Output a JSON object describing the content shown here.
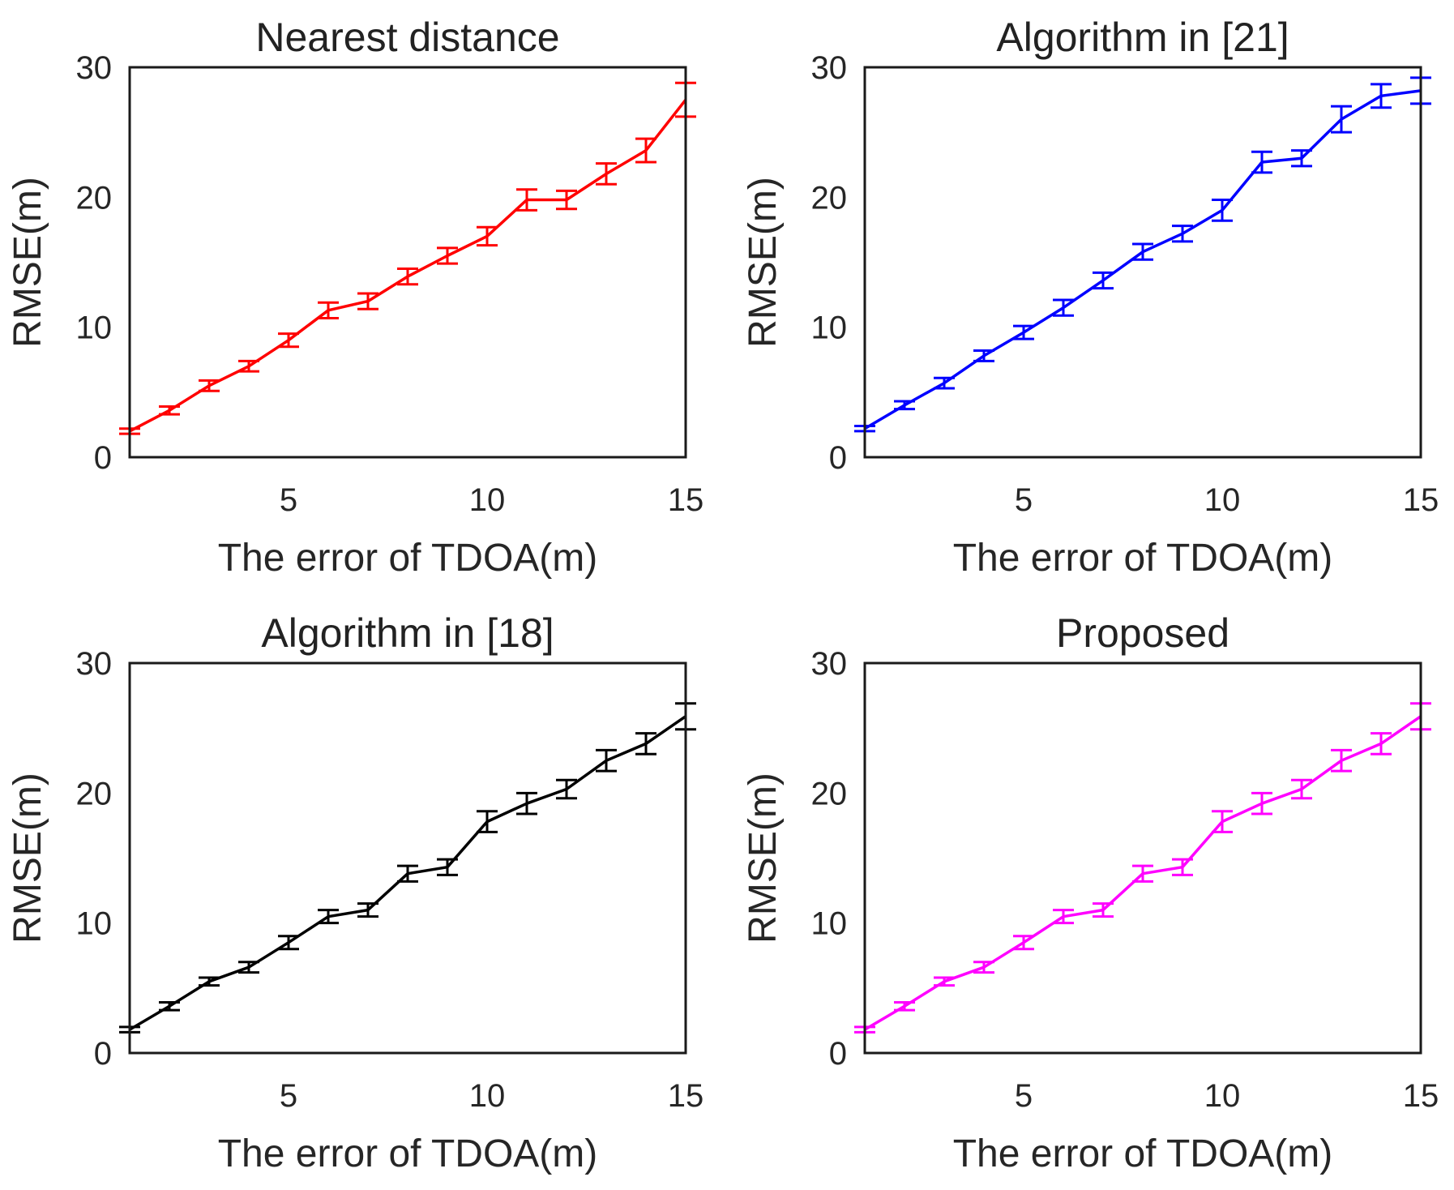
{
  "chart_data": [
    {
      "type": "line",
      "title": "Nearest distance",
      "xlabel": "The error of TDOA(m)",
      "ylabel": "RMSE(m)",
      "xlim": [
        1,
        15
      ],
      "ylim": [
        0,
        30
      ],
      "xticks": [
        5,
        10,
        15
      ],
      "yticks": [
        0,
        10,
        20,
        30
      ],
      "color": "#ff0000",
      "x": [
        1,
        2,
        3,
        4,
        5,
        6,
        7,
        8,
        9,
        10,
        11,
        12,
        13,
        14,
        15
      ],
      "values": [
        2.0,
        3.6,
        5.5,
        7.0,
        9.0,
        11.3,
        12.0,
        13.9,
        15.5,
        17.0,
        19.8,
        19.8,
        21.8,
        23.6,
        27.5
      ],
      "error": [
        0.2,
        0.3,
        0.4,
        0.4,
        0.5,
        0.6,
        0.6,
        0.6,
        0.6,
        0.7,
        0.8,
        0.7,
        0.8,
        0.9,
        1.3
      ]
    },
    {
      "type": "line",
      "title": "Algorithm in [21]",
      "xlabel": "The error of TDOA(m)",
      "ylabel": "RMSE(m)",
      "xlim": [
        1,
        15
      ],
      "ylim": [
        0,
        30
      ],
      "xticks": [
        5,
        10,
        15
      ],
      "yticks": [
        0,
        10,
        20,
        30
      ],
      "color": "#0000ff",
      "x": [
        1,
        2,
        3,
        4,
        5,
        6,
        7,
        8,
        9,
        10,
        11,
        12,
        13,
        14,
        15
      ],
      "values": [
        2.2,
        4.0,
        5.7,
        7.8,
        9.6,
        11.5,
        13.6,
        15.8,
        17.2,
        19.0,
        22.7,
        23.0,
        26.0,
        27.8,
        28.2
      ],
      "error": [
        0.2,
        0.3,
        0.4,
        0.4,
        0.5,
        0.6,
        0.6,
        0.6,
        0.6,
        0.8,
        0.8,
        0.6,
        1.0,
        0.9,
        1.0
      ]
    },
    {
      "type": "line",
      "title": "Algorithm in [18]",
      "xlabel": "The error of TDOA(m)",
      "ylabel": "RMSE(m)",
      "xlim": [
        1,
        15
      ],
      "ylim": [
        0,
        30
      ],
      "xticks": [
        5,
        10,
        15
      ],
      "yticks": [
        0,
        10,
        20,
        30
      ],
      "color": "#000000",
      "x": [
        1,
        2,
        3,
        4,
        5,
        6,
        7,
        8,
        9,
        10,
        11,
        12,
        13,
        14,
        15
      ],
      "values": [
        1.8,
        3.6,
        5.5,
        6.6,
        8.5,
        10.5,
        11.0,
        13.8,
        14.3,
        17.8,
        19.2,
        20.3,
        22.5,
        23.8,
        25.9
      ],
      "error": [
        0.2,
        0.3,
        0.3,
        0.4,
        0.5,
        0.5,
        0.5,
        0.6,
        0.6,
        0.8,
        0.8,
        0.7,
        0.8,
        0.8,
        1.0
      ]
    },
    {
      "type": "line",
      "title": "Proposed",
      "xlabel": "The error of TDOA(m)",
      "ylabel": "RMSE(m)",
      "xlim": [
        1,
        15
      ],
      "ylim": [
        0,
        30
      ],
      "xticks": [
        5,
        10,
        15
      ],
      "yticks": [
        0,
        10,
        20,
        30
      ],
      "color": "#ff00ff",
      "x": [
        1,
        2,
        3,
        4,
        5,
        6,
        7,
        8,
        9,
        10,
        11,
        12,
        13,
        14,
        15
      ],
      "values": [
        1.8,
        3.6,
        5.5,
        6.6,
        8.5,
        10.5,
        11.0,
        13.8,
        14.3,
        17.8,
        19.2,
        20.3,
        22.5,
        23.8,
        25.9
      ],
      "error": [
        0.2,
        0.3,
        0.3,
        0.4,
        0.5,
        0.5,
        0.5,
        0.6,
        0.6,
        0.8,
        0.8,
        0.7,
        0.8,
        0.8,
        1.0
      ]
    }
  ]
}
